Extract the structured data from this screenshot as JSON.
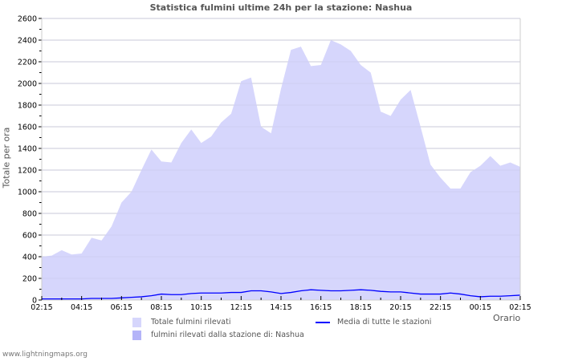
{
  "chart_data": {
    "type": "area",
    "title": "Statistica fulmini ultime 24h per la stazione: Nashua",
    "xlabel": "Orario",
    "ylabel": "Totale per ora",
    "ylim": [
      0,
      2600
    ],
    "yticks": [
      0,
      200,
      400,
      600,
      800,
      1000,
      1200,
      1400,
      1600,
      1800,
      2000,
      2200,
      2400,
      2600
    ],
    "xtick_labels": [
      "02:15",
      "04:15",
      "06:15",
      "08:15",
      "10:15",
      "12:15",
      "14:15",
      "16:15",
      "18:15",
      "20:15",
      "22:15",
      "00:15",
      "02:15"
    ],
    "grid": true,
    "legend_placement": "bottom",
    "x_step_hours": 0.5,
    "series": [
      {
        "name": "Totale fulmini rilevati",
        "kind": "area",
        "color": "#d6d6fc",
        "values": [
          400,
          410,
          460,
          420,
          430,
          575,
          550,
          680,
          900,
          1000,
          1200,
          1390,
          1280,
          1270,
          1450,
          1575,
          1450,
          1510,
          1640,
          1720,
          2020,
          2055,
          1600,
          1540,
          1950,
          2310,
          2340,
          2160,
          2170,
          2400,
          2360,
          2300,
          2170,
          2100,
          1740,
          1700,
          1850,
          1940,
          1600,
          1250,
          1130,
          1030,
          1030,
          1180,
          1240,
          1330,
          1240,
          1270,
          1230
        ]
      },
      {
        "name": "fulmini rilevati dalla stazione di: Nashua",
        "kind": "area",
        "color": "#b4b4f8",
        "values": []
      },
      {
        "name": "Media di tutte le stazioni",
        "kind": "line",
        "color": "#0000ff",
        "values": [
          10,
          10,
          10,
          10,
          10,
          15,
          15,
          15,
          20,
          25,
          30,
          40,
          55,
          50,
          50,
          60,
          65,
          65,
          65,
          70,
          70,
          85,
          85,
          75,
          60,
          70,
          85,
          95,
          90,
          85,
          85,
          90,
          95,
          90,
          80,
          75,
          75,
          65,
          55,
          55,
          55,
          65,
          55,
          40,
          30,
          35,
          35,
          40,
          45
        ]
      }
    ]
  },
  "footer": "www.lightningmaps.org"
}
